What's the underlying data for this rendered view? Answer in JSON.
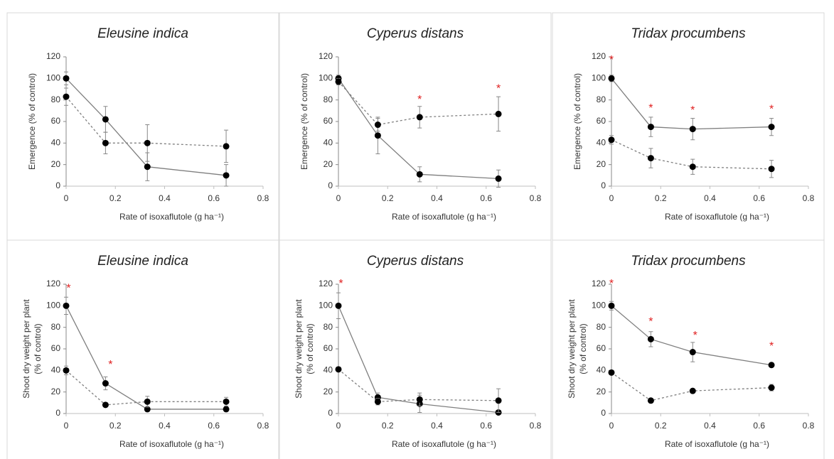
{
  "chart_data": [
    {
      "type": "line",
      "title": "Eleusine indica",
      "ylabel": [
        "Emergence (% of  control)"
      ],
      "xlabel": "Rate of isoxaflutole (g ha⁻¹)",
      "x": [
        0,
        0.16,
        0.33,
        0.65
      ],
      "xlim": [
        0,
        0.8
      ],
      "xticks": [
        0,
        0.2,
        0.4,
        0.6,
        0.8
      ],
      "ylim": [
        0,
        120
      ],
      "yticks": [
        0,
        20,
        40,
        60,
        80,
        100,
        120
      ],
      "series": [
        {
          "color": "#000000",
          "style": "solid",
          "values": [
            100,
            62,
            18,
            10
          ],
          "errors": [
            6,
            12,
            13,
            10
          ]
        },
        {
          "color": "#000000",
          "style": "dashed",
          "values": [
            83,
            40,
            40,
            37
          ],
          "errors": [
            8,
            10,
            17,
            15
          ]
        }
      ],
      "annotations": []
    },
    {
      "type": "line",
      "title": "Cyperus distans",
      "ylabel": [
        "Emergence (% of  control)"
      ],
      "xlabel": "Rate of isoxaflutole (g ha⁻¹)",
      "x": [
        0,
        0.16,
        0.33,
        0.65
      ],
      "xlim": [
        0,
        0.8
      ],
      "xticks": [
        0,
        0.2,
        0.4,
        0.6,
        0.8
      ],
      "ylim": [
        0,
        120
      ],
      "yticks": [
        0,
        20,
        40,
        60,
        80,
        100,
        120
      ],
      "series": [
        {
          "color": "#000000",
          "style": "solid",
          "values": [
            100,
            47,
            11,
            7
          ],
          "errors": [
            3,
            17,
            7,
            8
          ]
        },
        {
          "color": "#000000",
          "style": "dashed",
          "values": [
            97,
            57,
            64,
            67
          ],
          "errors": [
            3,
            6,
            10,
            16
          ]
        }
      ],
      "annotations": [
        {
          "text": "*",
          "x": 0.33,
          "y": 80
        },
        {
          "text": "*",
          "x": 0.65,
          "y": 90
        }
      ]
    },
    {
      "type": "line",
      "title": "Tridax procumbens",
      "ylabel": [
        "Emergence (% of  control)"
      ],
      "xlabel": "Rate of isoxaflutole (g ha⁻¹)",
      "x": [
        0,
        0.16,
        0.33,
        0.65
      ],
      "xlim": [
        0,
        0.8
      ],
      "xticks": [
        0,
        0.2,
        0.4,
        0.6,
        0.8
      ],
      "ylim": [
        0,
        120
      ],
      "yticks": [
        0,
        20,
        40,
        60,
        80,
        100,
        120
      ],
      "series": [
        {
          "color": "#000000",
          "style": "solid",
          "values": [
            100,
            55,
            53,
            55
          ],
          "errors": [
            3,
            9,
            10,
            8
          ]
        },
        {
          "color": "#000000",
          "style": "dashed",
          "values": [
            43,
            26,
            18,
            16
          ],
          "errors": [
            4,
            9,
            7,
            8
          ]
        }
      ],
      "annotations": [
        {
          "text": "*",
          "x": 0,
          "y": 117
        },
        {
          "text": "*",
          "x": 0.16,
          "y": 72
        },
        {
          "text": "*",
          "x": 0.33,
          "y": 70
        },
        {
          "text": "*",
          "x": 0.65,
          "y": 71
        }
      ]
    },
    {
      "type": "line",
      "title": "Eleusine indica",
      "ylabel": [
        "Shoot dry weight per plant",
        "(% of control)"
      ],
      "xlabel": "Rate of isoxaflutole (g ha⁻¹)",
      "x": [
        0,
        0.16,
        0.33,
        0.65
      ],
      "xlim": [
        0,
        0.8
      ],
      "xticks": [
        0,
        0.2,
        0.4,
        0.6,
        0.8
      ],
      "ylim": [
        0,
        120
      ],
      "yticks": [
        0,
        20,
        40,
        60,
        80,
        100,
        120
      ],
      "series": [
        {
          "color": "#000000",
          "style": "solid",
          "values": [
            100,
            28,
            4,
            4
          ],
          "errors": [
            8,
            6,
            2,
            2
          ]
        },
        {
          "color": "#000000",
          "style": "dashed",
          "values": [
            40,
            8,
            11,
            11
          ],
          "errors": [
            4,
            1,
            5,
            4
          ]
        }
      ],
      "annotations": [
        {
          "text": "*",
          "x": 0.01,
          "y": 116
        },
        {
          "text": "*",
          "x": 0.18,
          "y": 45
        }
      ]
    },
    {
      "type": "line",
      "title": "Cyperus distans",
      "ylabel": [
        "Shoot dry weight per plant",
        "(% of control)"
      ],
      "xlabel": "Rate of isoxaflutole (g ha⁻¹)",
      "x": [
        0,
        0.16,
        0.33,
        0.65
      ],
      "xlim": [
        0,
        0.8
      ],
      "xticks": [
        0,
        0.2,
        0.4,
        0.6,
        0.8
      ],
      "ylim": [
        0,
        120
      ],
      "yticks": [
        0,
        20,
        40,
        60,
        80,
        100,
        120
      ],
      "series": [
        {
          "color": "#000000",
          "style": "solid",
          "values": [
            100,
            15,
            9,
            1
          ],
          "errors": [
            12,
            4,
            8,
            2
          ]
        },
        {
          "color": "#000000",
          "style": "dashed",
          "values": [
            41,
            11,
            13,
            12
          ],
          "errors": [
            2,
            3,
            6,
            11
          ]
        }
      ],
      "annotations": [
        {
          "text": "*",
          "x": 0.01,
          "y": 120
        }
      ]
    },
    {
      "type": "line",
      "title": "Tridax procumbens",
      "ylabel": [
        "Shoot dry weight per plant",
        "(% of control)"
      ],
      "xlabel": "Rate of isoxaflutole (g ha⁻¹)",
      "x": [
        0,
        0.16,
        0.33,
        0.65
      ],
      "xlim": [
        0,
        0.8
      ],
      "xticks": [
        0,
        0.2,
        0.4,
        0.6,
        0.8
      ],
      "ylim": [
        0,
        120
      ],
      "yticks": [
        0,
        20,
        40,
        60,
        80,
        100,
        120
      ],
      "series": [
        {
          "color": "#000000",
          "style": "solid",
          "values": [
            100,
            69,
            57,
            45
          ],
          "errors": [
            4,
            7,
            9,
            2
          ]
        },
        {
          "color": "#000000",
          "style": "dashed",
          "values": [
            38,
            12,
            21,
            24
          ],
          "errors": [
            2,
            2,
            2,
            3
          ]
        }
      ],
      "annotations": [
        {
          "text": "*",
          "x": 0,
          "y": 120
        },
        {
          "text": "*",
          "x": 0.16,
          "y": 85
        },
        {
          "text": "*",
          "x": 0.34,
          "y": 72
        },
        {
          "text": "*",
          "x": 0.65,
          "y": 62
        }
      ]
    }
  ]
}
